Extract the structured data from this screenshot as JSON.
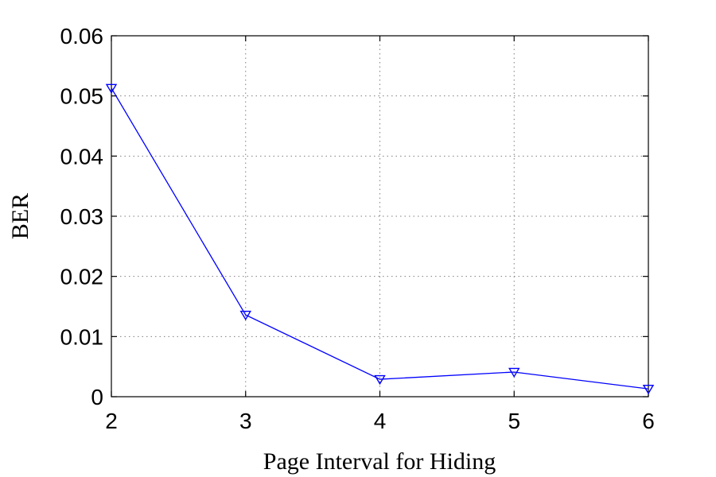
{
  "chart_data": {
    "type": "line",
    "title": "",
    "xlabel": "Page Interval for Hiding",
    "ylabel": "BER",
    "xlim": [
      2,
      6
    ],
    "ylim": [
      0,
      0.06
    ],
    "xticks": [
      2,
      3,
      4,
      5,
      6
    ],
    "xtick_labels": [
      "2",
      "3",
      "4",
      "5",
      "6"
    ],
    "yticks": [
      0,
      0.01,
      0.02,
      0.03,
      0.04,
      0.05,
      0.06
    ],
    "ytick_labels": [
      "0",
      "0.01",
      "0.02",
      "0.03",
      "0.04",
      "0.05",
      "0.06"
    ],
    "grid": true,
    "legend": "none",
    "series": [
      {
        "x": [
          2,
          3,
          4,
          5,
          6
        ],
        "values": [
          0.0513,
          0.0136,
          0.0029,
          0.0041,
          0.0013
        ],
        "color": "#0000ff",
        "marker": "triangle-down"
      }
    ]
  }
}
